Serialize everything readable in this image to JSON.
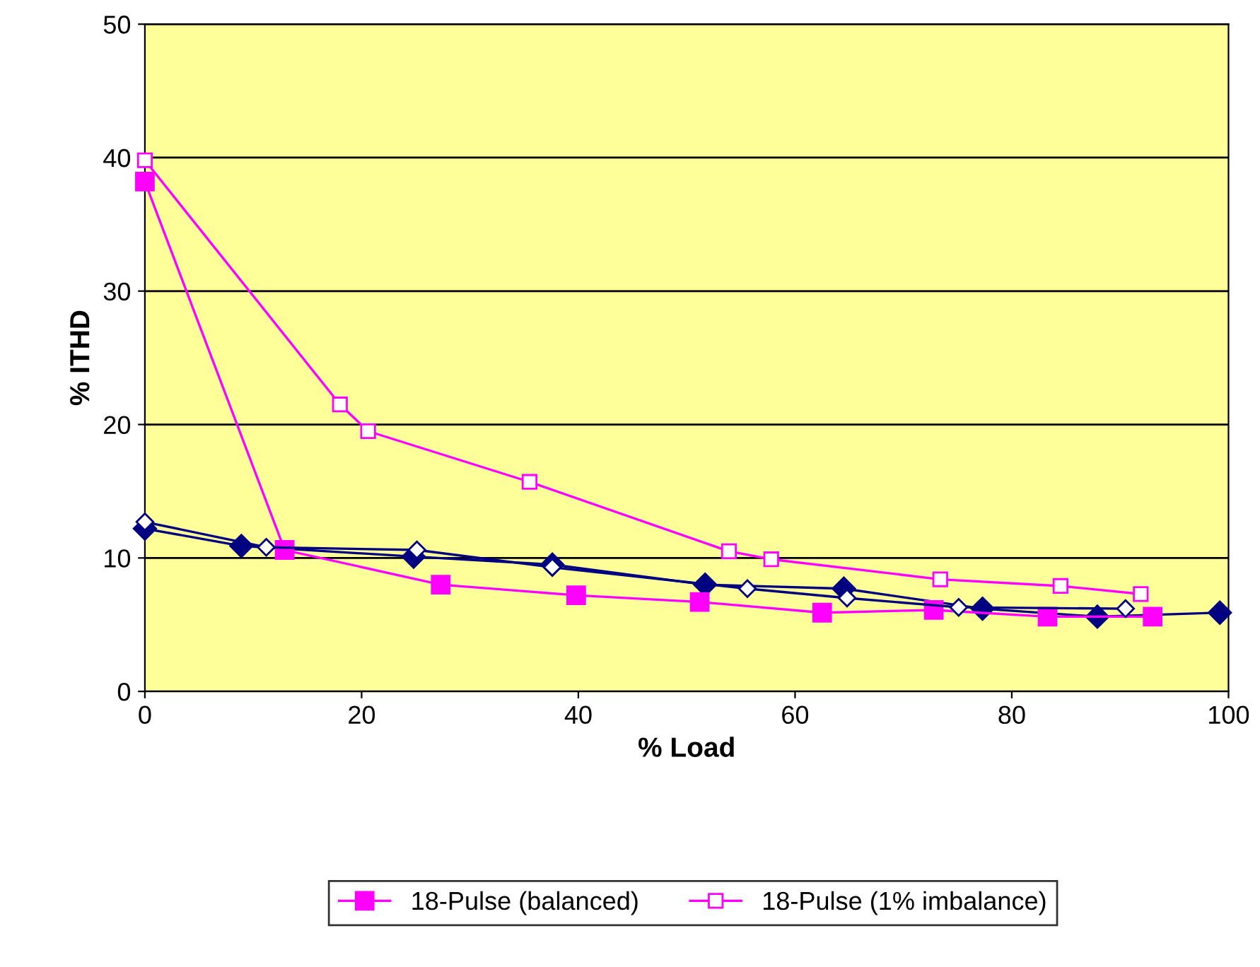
{
  "chart_data": {
    "type": "line",
    "xlabel": "% Load",
    "ylabel": "% ITHD",
    "xlim": [
      0,
      100
    ],
    "xticks": [
      0,
      20,
      40,
      60,
      80,
      100
    ],
    "ylim": [
      0,
      50
    ],
    "yticks": [
      0,
      10,
      20,
      30,
      40,
      50
    ],
    "grid": "y",
    "legend": "bottom",
    "series": [
      {
        "color": "#000080",
        "marker": "diamond",
        "x": [
          0,
          8.9,
          24.8,
          37.6,
          51.7,
          64.5,
          77.3,
          87.9,
          99.2
        ],
        "values": [
          12.2,
          10.9,
          10.1,
          9.5,
          8.0,
          7.7,
          6.2,
          5.6,
          5.9
        ]
      },
      {
        "name": "18-Pulse (balanced)",
        "color": "#ff00ff",
        "marker": "square",
        "x": [
          0,
          12.9,
          27.3,
          39.8,
          51.2,
          62.5,
          72.8,
          83.3,
          93.0
        ],
        "values": [
          38.2,
          10.6,
          8.0,
          7.2,
          6.7,
          5.9,
          6.1,
          5.6,
          5.6
        ]
      },
      {
        "color": "#000080",
        "marker": "diamond",
        "x": [
          0,
          11.2,
          25.1,
          37.6,
          55.6,
          64.8,
          75.1,
          90.5
        ],
        "values": [
          12.7,
          10.8,
          10.6,
          9.3,
          7.7,
          7.0,
          6.3,
          6.2
        ]
      },
      {
        "name": "18-Pulse (1% imbalance)",
        "color": "#ff00ff",
        "marker": "square",
        "x": [
          0,
          18.0,
          20.6,
          35.5,
          53.9,
          57.8,
          73.4,
          84.5,
          91.9
        ],
        "values": [
          39.8,
          21.5,
          19.5,
          15.7,
          10.5,
          9.9,
          8.4,
          7.9,
          7.3
        ]
      }
    ]
  }
}
